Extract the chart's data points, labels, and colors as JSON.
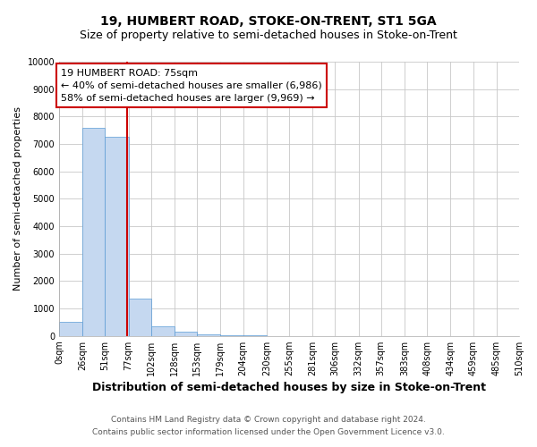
{
  "title": "19, HUMBERT ROAD, STOKE-ON-TRENT, ST1 5GA",
  "subtitle": "Size of property relative to semi-detached houses in Stoke-on-Trent",
  "xlabel": "Distribution of semi-detached houses by size in Stoke-on-Trent",
  "ylabel": "Number of semi-detached properties",
  "footer_line1": "Contains HM Land Registry data © Crown copyright and database right 2024.",
  "footer_line2": "Contains public sector information licensed under the Open Government Licence v3.0.",
  "property_label": "19 HUMBERT ROAD: 75sqm",
  "annotation_line1": "← 40% of semi-detached houses are smaller (6,986)",
  "annotation_line2": "58% of semi-detached houses are larger (9,969) →",
  "bar_edges": [
    0,
    26,
    51,
    77,
    102,
    128,
    153,
    179,
    204,
    230,
    255,
    281,
    306,
    332,
    357,
    383,
    408,
    434,
    459,
    485,
    510
  ],
  "bar_heights": [
    500,
    7600,
    7250,
    1350,
    350,
    150,
    50,
    30,
    15,
    5,
    3,
    2,
    1,
    1,
    0,
    0,
    0,
    0,
    0,
    0
  ],
  "bar_color": "#c5d8f0",
  "bar_edge_color": "#5b9bd5",
  "vline_x": 75,
  "vline_color": "#cc0000",
  "annotation_box_color": "#cc0000",
  "ylim": [
    0,
    10000
  ],
  "yticks": [
    0,
    1000,
    2000,
    3000,
    4000,
    5000,
    6000,
    7000,
    8000,
    9000,
    10000
  ],
  "grid_color": "#c8c8c8",
  "background_color": "#ffffff",
  "title_fontsize": 10,
  "subtitle_fontsize": 9,
  "axis_label_fontsize": 8,
  "tick_fontsize": 7,
  "footer_fontsize": 6.5,
  "annotation_fontsize": 8
}
